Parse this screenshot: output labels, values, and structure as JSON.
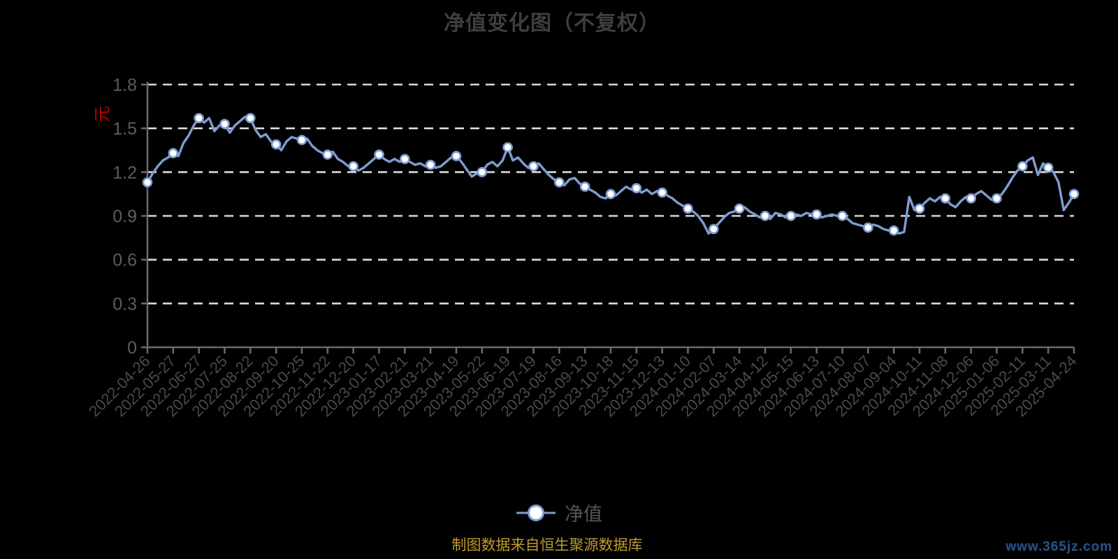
{
  "caption": "制图数据来自恒生聚源数据库",
  "watermark": "www.365jz.com",
  "colors": {
    "background": "#000000",
    "title": "#3e3e3e",
    "axis": "#6b6b6b",
    "grid": "#d9d9d9",
    "line": "#7e9cd0",
    "marker_fill": "#ffffff",
    "y_label": "#5d5d5d",
    "x_label": "#4a4a4a",
    "unit": "#c00000",
    "legend_text": "#555555",
    "caption": "#bf9b30",
    "watermark": "#27508c"
  },
  "chart_data": {
    "type": "line",
    "title": "净值变化图（不复权）",
    "series_name": "净值",
    "y_unit": "元",
    "ylim": [
      0,
      1.8
    ],
    "y_ticks": [
      "0",
      "0.3",
      "0.6",
      "0.9",
      "1.2",
      "1.5",
      "1.8"
    ],
    "grid": "horizontal-dashed-white",
    "legend_position": "bottom",
    "categories": [
      "2022-04-26",
      "2022-05-27",
      "2022-06-27",
      "2022-07-25",
      "2022-08-22",
      "2022-09-20",
      "2022-10-25",
      "2022-11-22",
      "2022-12-20",
      "2023-01-17",
      "2023-02-21",
      "2023-03-21",
      "2023-04-19",
      "2023-05-22",
      "2023-06-19",
      "2023-07-19",
      "2023-08-16",
      "2023-09-13",
      "2023-10-18",
      "2023-11-15",
      "2023-12-13",
      "2024-01-10",
      "2024-02-07",
      "2024-03-14",
      "2024-04-12",
      "2024-05-15",
      "2024-06-13",
      "2024-07-10",
      "2024-08-07",
      "2024-09-04",
      "2024-10-11",
      "2024-11-08",
      "2024-12-06",
      "2025-01-06",
      "2025-02-11",
      "2025-03-11",
      "2025-04-24"
    ],
    "marker_values": [
      1.13,
      1.33,
      1.57,
      1.53,
      1.57,
      1.39,
      1.42,
      1.32,
      1.24,
      1.32,
      1.29,
      1.25,
      1.31,
      1.2,
      1.37,
      1.24,
      1.13,
      1.1,
      1.05,
      1.09,
      1.06,
      0.95,
      0.81,
      0.95,
      0.9,
      0.9,
      0.91,
      0.9,
      0.82,
      0.8,
      0.95,
      1.02,
      1.02,
      1.02,
      1.24,
      1.23,
      1.05
    ],
    "marker_every": 5,
    "values": [
      1.13,
      1.19,
      1.24,
      1.28,
      1.3,
      1.33,
      1.31,
      1.4,
      1.45,
      1.52,
      1.57,
      1.54,
      1.57,
      1.48,
      1.52,
      1.53,
      1.47,
      1.52,
      1.55,
      1.58,
      1.57,
      1.49,
      1.44,
      1.46,
      1.41,
      1.39,
      1.35,
      1.41,
      1.44,
      1.43,
      1.42,
      1.43,
      1.38,
      1.35,
      1.33,
      1.32,
      1.34,
      1.29,
      1.27,
      1.24,
      1.24,
      1.21,
      1.23,
      1.26,
      1.29,
      1.32,
      1.29,
      1.27,
      1.29,
      1.27,
      1.29,
      1.27,
      1.25,
      1.26,
      1.24,
      1.25,
      1.23,
      1.24,
      1.27,
      1.3,
      1.31,
      1.27,
      1.22,
      1.17,
      1.19,
      1.2,
      1.25,
      1.27,
      1.24,
      1.28,
      1.37,
      1.28,
      1.3,
      1.26,
      1.23,
      1.24,
      1.26,
      1.22,
      1.18,
      1.15,
      1.13,
      1.11,
      1.15,
      1.16,
      1.12,
      1.1,
      1.08,
      1.06,
      1.03,
      1.02,
      1.05,
      1.04,
      1.07,
      1.1,
      1.08,
      1.09,
      1.06,
      1.08,
      1.05,
      1.07,
      1.06,
      1.04,
      1.02,
      0.99,
      0.97,
      0.95,
      0.93,
      0.9,
      0.85,
      0.78,
      0.81,
      0.85,
      0.89,
      0.92,
      0.93,
      0.95,
      0.96,
      0.93,
      0.91,
      0.89,
      0.9,
      0.88,
      0.92,
      0.91,
      0.89,
      0.9,
      0.91,
      0.9,
      0.92,
      0.91,
      0.91,
      0.89,
      0.9,
      0.91,
      0.9,
      0.9,
      0.88,
      0.85,
      0.84,
      0.83,
      0.82,
      0.84,
      0.83,
      0.81,
      0.8,
      0.8,
      0.78,
      0.79,
      1.03,
      0.94,
      0.95,
      0.99,
      1.02,
      1.0,
      1.03,
      1.02,
      0.98,
      0.96,
      1.0,
      1.03,
      1.02,
      1.05,
      1.07,
      1.04,
      1.01,
      1.02,
      1.05,
      1.1,
      1.16,
      1.21,
      1.24,
      1.28,
      1.3,
      1.18,
      1.26,
      1.23,
      1.2,
      1.13,
      0.94,
      0.99,
      1.05
    ]
  }
}
